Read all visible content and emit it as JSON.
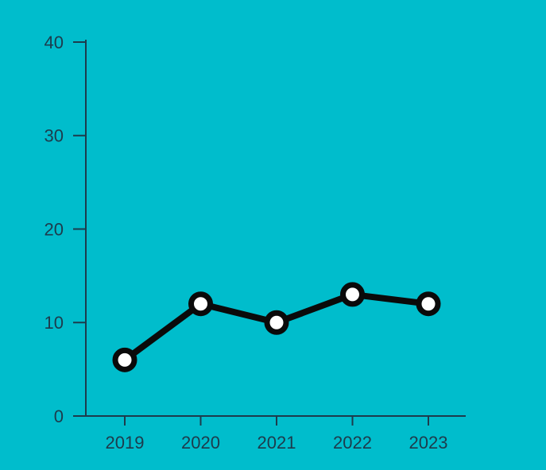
{
  "chart_data": {
    "type": "line",
    "categories": [
      "2019",
      "2020",
      "2021",
      "2022",
      "2023"
    ],
    "values": [
      6,
      12,
      10,
      13,
      12
    ],
    "color": "#0a0a0a",
    "marker_fill": "#ffffff",
    "ylim": [
      0,
      40
    ],
    "yticks": [
      0,
      10,
      20,
      30,
      40
    ],
    "grid": false
  }
}
